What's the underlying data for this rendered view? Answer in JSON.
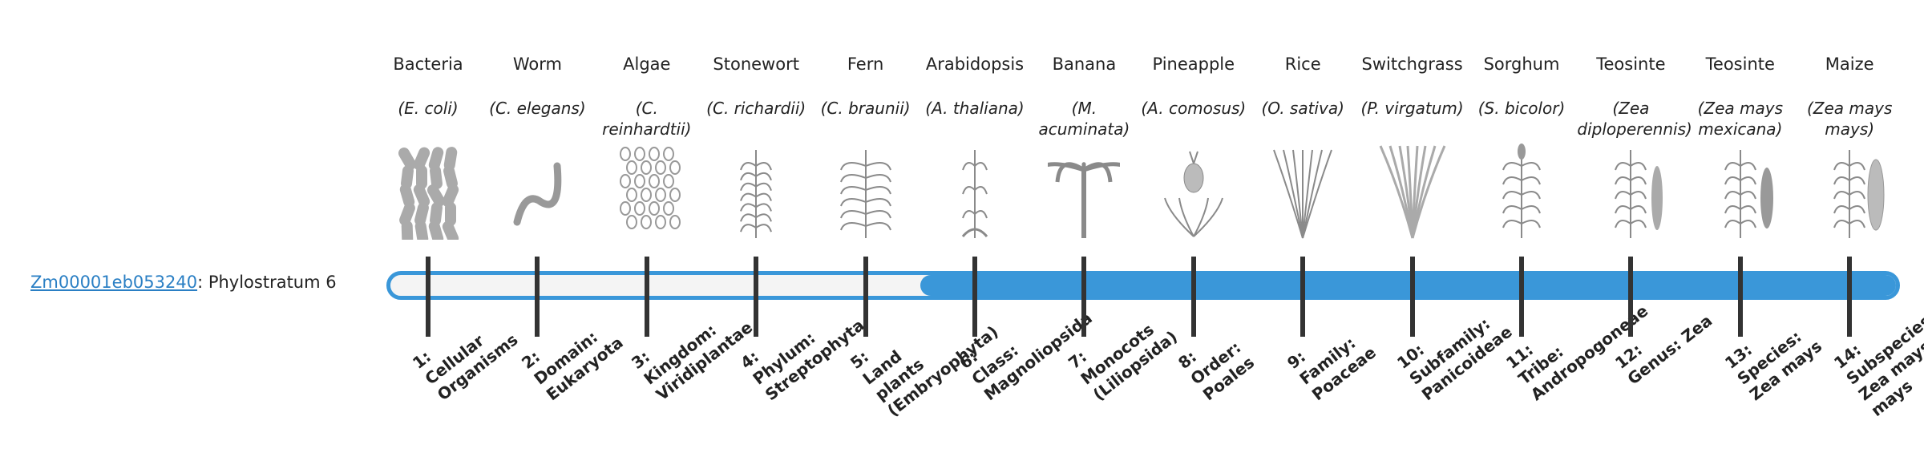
{
  "gene": {
    "id": "Zm00001eb053240",
    "label": ": Phylostratum 6",
    "phylostratum": 6
  },
  "strata": [
    {
      "common": "Bacteria",
      "scientific": "(E. coli)",
      "level": "1:",
      "name": "Cellular Organisms"
    },
    {
      "common": "Worm",
      "scientific": "(C. elegans)",
      "level": "2:",
      "name": "Domain: Eukaryota"
    },
    {
      "common": "Algae",
      "scientific": "(C. reinhardtii)",
      "level": "3:",
      "name": "Kingdom: Viridiplantae"
    },
    {
      "common": "Stonewort",
      "scientific": "(C. richardii)",
      "level": "4:",
      "name": "Phylum: Streptophyta"
    },
    {
      "common": "Fern",
      "scientific": "(C. braunii)",
      "level": "5:",
      "name": "Land plants (Embryophyta)"
    },
    {
      "common": "Arabidopsis",
      "scientific": "(A. thaliana)",
      "level": "6:",
      "name": "Class: Magnoliopsida"
    },
    {
      "common": "Banana",
      "scientific": "(M. acuminata)",
      "level": "7:",
      "name": "Monocots (Liliopsida)"
    },
    {
      "common": "Pineapple",
      "scientific": "(A. comosus)",
      "level": "8:",
      "name": "Order: Poales"
    },
    {
      "common": "Rice",
      "scientific": "(O. sativa)",
      "level": "9:",
      "name": "Family: Poaceae"
    },
    {
      "common": "Switchgrass",
      "scientific": "(P. virgatum)",
      "level": "10:",
      "name": "Subfamily: Panicoideae"
    },
    {
      "common": "Sorghum",
      "scientific": "(S. bicolor)",
      "level": "11:",
      "name": "Tribe: Andropogoneae"
    },
    {
      "common": "Teosinte",
      "scientific": "(Zea diploperennis)",
      "level": "12:",
      "name": "Genus: Zea"
    },
    {
      "common": "Teosinte",
      "scientific": "(Zea mays mexicana)",
      "level": "13:",
      "name": "Species: Zea mays"
    },
    {
      "common": "Maize",
      "scientific": "(Zea mays mays)",
      "level": "14:",
      "name": "Subspecies: Zea mays mays"
    }
  ]
}
